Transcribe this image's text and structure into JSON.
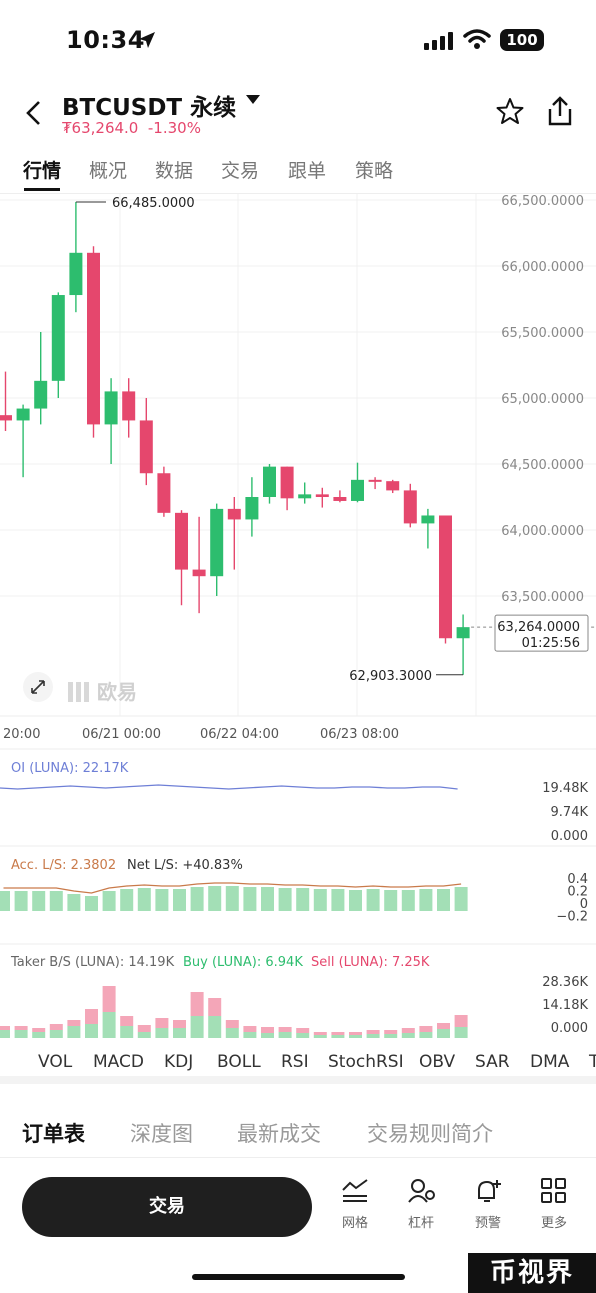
{
  "status_bar": {
    "time": "10:34",
    "battery": "100"
  },
  "header": {
    "symbol": "BTCUSDT 永续",
    "price": "₮63,264.0",
    "change": "-1.30%"
  },
  "tabs": [
    "行情",
    "概况",
    "数据",
    "交易",
    "跟单",
    "策略"
  ],
  "chart_data": {
    "type": "candlestick",
    "y_axis_labels": [
      "66,500.0000",
      "66,000.0000",
      "65,500.0000",
      "65,000.0000",
      "64,500.0000",
      "64,000.0000",
      "63,500.0000"
    ],
    "y_axis_values": [
      66500,
      66000,
      65500,
      65000,
      64500,
      64000,
      63500
    ],
    "x_axis_labels": [
      "20:00",
      "06/21 00:00",
      "06/22 04:00",
      "06/23 08:00"
    ],
    "high_marker": "66,485.0000",
    "low_marker": "62,903.3000",
    "current_price": "63,264.0000",
    "countdown": "01:25:56",
    "logo_text": "欧易",
    "colors": {
      "up": "#2dbd6e",
      "down": "#e5476d"
    },
    "candles": [
      {
        "o": 64870,
        "h": 65200,
        "l": 64750,
        "c": 64830
      },
      {
        "o": 64830,
        "h": 64950,
        "l": 64400,
        "c": 64920
      },
      {
        "o": 64920,
        "h": 65500,
        "l": 64800,
        "c": 65130
      },
      {
        "o": 65130,
        "h": 65800,
        "l": 65000,
        "c": 65780
      },
      {
        "o": 65780,
        "h": 66485,
        "l": 65650,
        "c": 66100
      },
      {
        "o": 66100,
        "h": 66150,
        "l": 64700,
        "c": 64800
      },
      {
        "o": 64800,
        "h": 65150,
        "l": 64500,
        "c": 65050
      },
      {
        "o": 65050,
        "h": 65150,
        "l": 64700,
        "c": 64830
      },
      {
        "o": 64830,
        "h": 65000,
        "l": 64340,
        "c": 64430
      },
      {
        "o": 64430,
        "h": 64480,
        "l": 64100,
        "c": 64130
      },
      {
        "o": 64130,
        "h": 64150,
        "l": 63430,
        "c": 63700
      },
      {
        "o": 63700,
        "h": 64100,
        "l": 63370,
        "c": 63650
      },
      {
        "o": 63650,
        "h": 64200,
        "l": 63500,
        "c": 64160
      },
      {
        "o": 64160,
        "h": 64250,
        "l": 63700,
        "c": 64080
      },
      {
        "o": 64080,
        "h": 64400,
        "l": 63950,
        "c": 64250
      },
      {
        "o": 64250,
        "h": 64500,
        "l": 64200,
        "c": 64480
      },
      {
        "o": 64480,
        "h": 64480,
        "l": 64150,
        "c": 64240
      },
      {
        "o": 64240,
        "h": 64360,
        "l": 64200,
        "c": 64270
      },
      {
        "o": 64270,
        "h": 64320,
        "l": 64170,
        "c": 64250
      },
      {
        "o": 64250,
        "h": 64300,
        "l": 64210,
        "c": 64220
      },
      {
        "o": 64220,
        "h": 64510,
        "l": 64210,
        "c": 64380
      },
      {
        "o": 64380,
        "h": 64400,
        "l": 64310,
        "c": 64370
      },
      {
        "o": 64370,
        "h": 64380,
        "l": 64280,
        "c": 64300
      },
      {
        "o": 64300,
        "h": 64350,
        "l": 64020,
        "c": 64050
      },
      {
        "o": 64050,
        "h": 64160,
        "l": 63860,
        "c": 64110
      },
      {
        "o": 64110,
        "h": 64110,
        "l": 63140,
        "c": 63180
      },
      {
        "o": 63180,
        "h": 63360,
        "l": 62903,
        "c": 63264
      }
    ],
    "oi": {
      "label": "OI (LUNA): 22.17K",
      "axis": [
        "19.48K",
        "9.74K",
        "0.000"
      ],
      "color": "#6e7fd6"
    },
    "ls": {
      "acc_label": "Acc. L/S: 2.3802",
      "net_label": "Net L/S: +40.83%",
      "axis": [
        "0.4",
        "0.2",
        "0",
        "−0.2"
      ],
      "acc_color": "#c97a4a"
    },
    "taker": {
      "label": "Taker B/S (LUNA): 14.19K",
      "buy_label": "Buy (LUNA): 6.94K",
      "sell_label": "Sell (LUNA): 7.25K",
      "axis": [
        "28.36K",
        "14.18K",
        "0.000"
      ],
      "buy_color": "#2dbd6e",
      "sell_color": "#e5476d"
    }
  },
  "indicator_tabs": [
    "VOL",
    "MACD",
    "KDJ",
    "BOLL",
    "RSI",
    "StochRSI",
    "OBV",
    "SAR",
    "DMA",
    "T"
  ],
  "section_tabs": [
    "订单表",
    "深度图",
    "最新成交",
    "交易规则简介"
  ],
  "bottom": {
    "trade_label": "交易",
    "actions": [
      {
        "icon": "grid-chart-icon",
        "label": "网格"
      },
      {
        "icon": "leverage-icon",
        "label": "杠杆"
      },
      {
        "icon": "alert-bell-icon",
        "label": "预警"
      },
      {
        "icon": "more-grid-icon",
        "label": "更多"
      }
    ]
  },
  "watermark": "币视界"
}
